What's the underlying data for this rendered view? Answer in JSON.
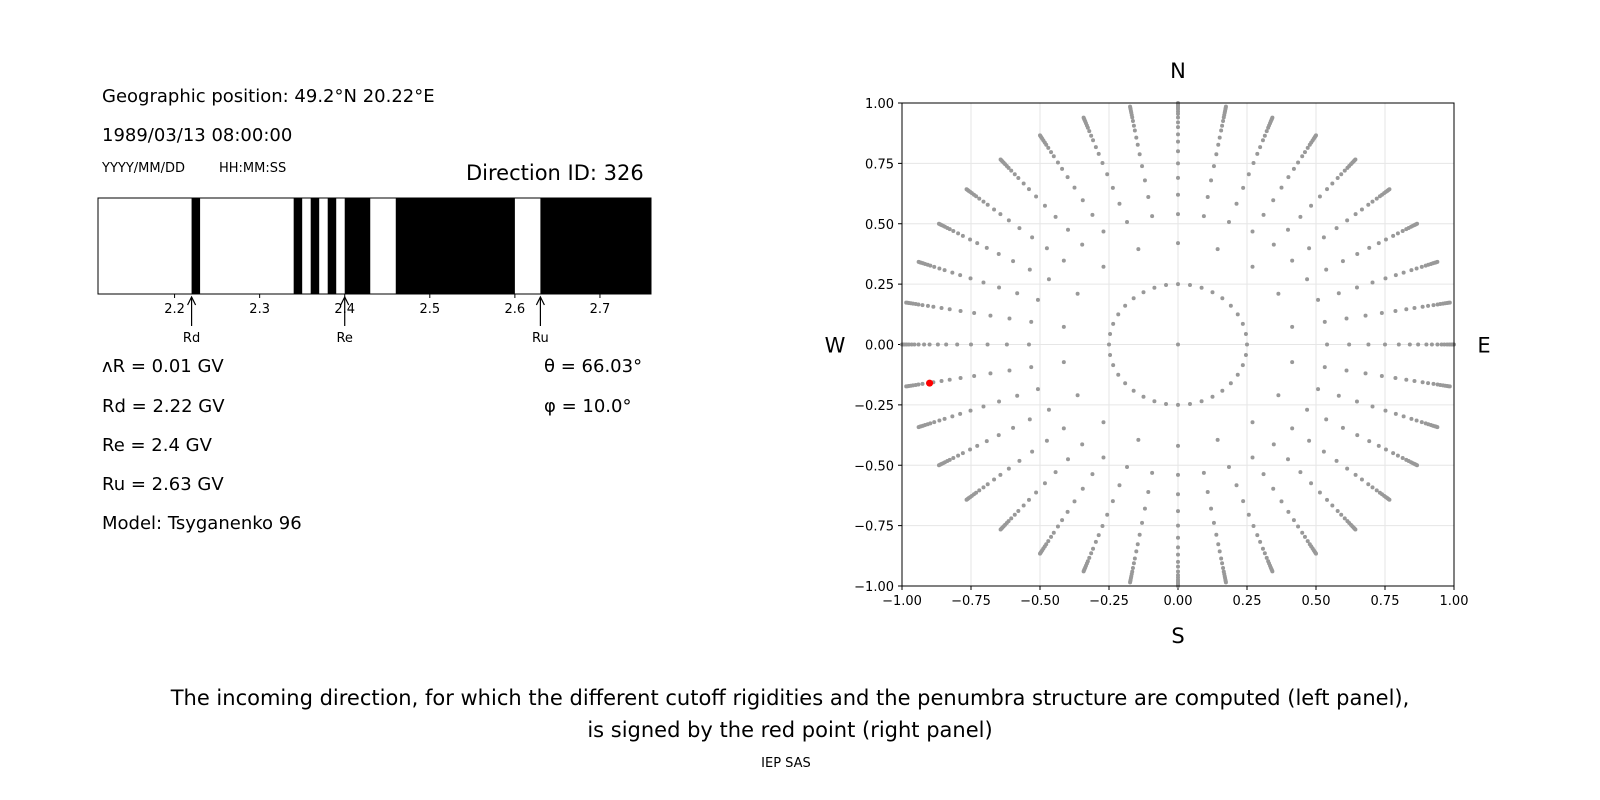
{
  "left_panel": {
    "position": "Geographic position: 49.2°N 20.22°E",
    "datetime": "1989/03/13 08:00:00",
    "date_format": "YYYY/MM/DD",
    "time_format": "HH:MM:SS",
    "direction_id": "Direction ID: 326",
    "delta_r": "ᴧR = 0.01 GV",
    "rd": "Rd = 2.22 GV",
    "re": "Re = 2.4 GV",
    "ru": "Ru = 2.63 GV",
    "model": "Model: Tsyganenko 96",
    "theta": "θ = 66.03°",
    "phi": "φ = 10.0°"
  },
  "chart_data": [
    {
      "type": "bar",
      "description_kind": "penumbra",
      "xlim": [
        2.11,
        2.76
      ],
      "xticks": [
        "2.2",
        "2.3",
        "2.4",
        "2.5",
        "2.6",
        "2.7"
      ],
      "xtick_values": [
        2.2,
        2.3,
        2.4,
        2.5,
        2.6,
        2.7
      ],
      "forbidden_bands": [
        [
          2.22,
          2.23
        ],
        [
          2.34,
          2.35
        ],
        [
          2.36,
          2.37
        ],
        [
          2.38,
          2.39
        ],
        [
          2.4,
          2.43
        ],
        [
          2.46,
          2.6
        ],
        [
          2.63,
          2.76
        ]
      ],
      "band_color": "#000000",
      "markers": [
        {
          "label": "Rd",
          "value": 2.22
        },
        {
          "label": "Re",
          "value": 2.4
        },
        {
          "label": "Ru",
          "value": 2.63
        }
      ]
    },
    {
      "type": "scatter",
      "xlim": [
        -1,
        1
      ],
      "ylim": [
        -1,
        1
      ],
      "grid": true,
      "ticks": [
        "−1.00",
        "−0.75",
        "−0.50",
        "−0.25",
        "0.00",
        "0.25",
        "0.50",
        "0.75",
        "1.00"
      ],
      "tick_values": [
        -1,
        -0.75,
        -0.5,
        -0.25,
        0,
        0.25,
        0.5,
        0.75,
        1
      ],
      "compass": {
        "n": "N",
        "s": "S",
        "w": "W",
        "e": "E"
      },
      "grid_points": {
        "spoke_azimuth_step_deg": 10,
        "radii": [
          0.25,
          0.42,
          0.54,
          0.62,
          0.69,
          0.75,
          0.8,
          0.84,
          0.87,
          0.9,
          0.92,
          0.94,
          0.955,
          0.965,
          0.975,
          0.983,
          0.99,
          0.995,
          1.0
        ],
        "color": "#999999"
      },
      "selected_point": {
        "x": -0.9,
        "y": -0.16,
        "color": "#ff0000"
      }
    }
  ],
  "caption": {
    "line1": "The incoming direction, for which the different cutoff rigidities and the penumbra structure are computed (left panel),",
    "line2": "is signed by the red point (right panel)"
  },
  "credit": "IEP SAS"
}
